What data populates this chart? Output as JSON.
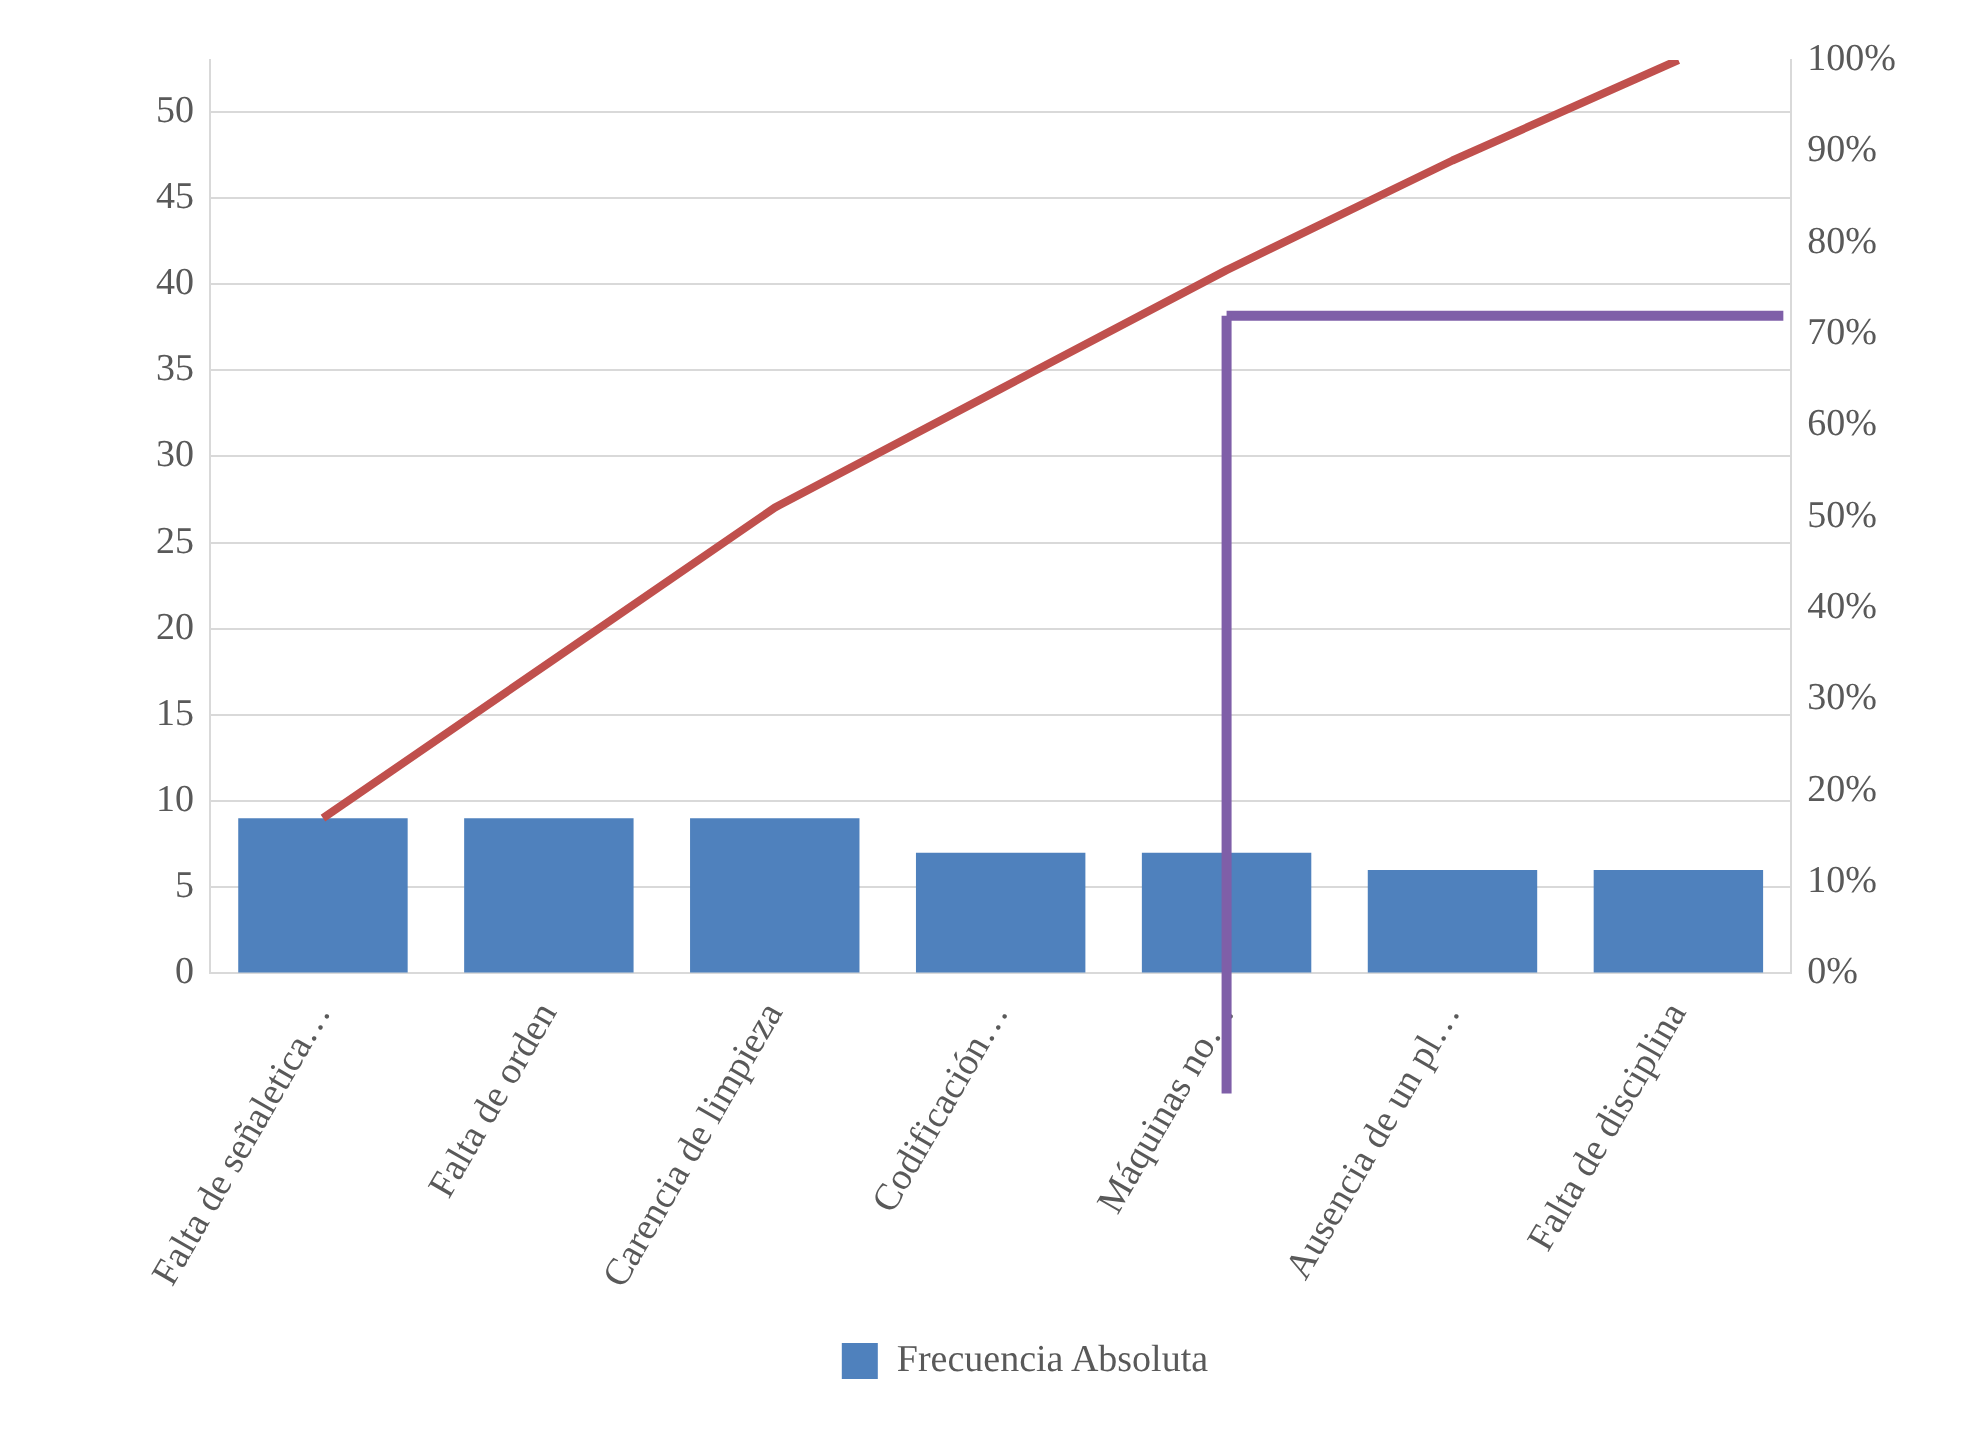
{
  "chart_data": {
    "type": "bar",
    "categories": [
      "Falta de señaletica…",
      "Falta de orden",
      "Carencia de limpieza",
      "Codificación…",
      "Máquinas no…",
      "Ausencia de un pl…",
      "Falta de disciplina"
    ],
    "series": [
      {
        "name": "Frecuencia Absoluta",
        "color": "#4f81bd",
        "values": [
          9,
          9,
          9,
          7,
          7,
          6,
          6
        ]
      },
      {
        "type": "line",
        "axis": "y2",
        "color": "#c0504d",
        "values": [
          17,
          34,
          51,
          64,
          77,
          89,
          100
        ]
      }
    ],
    "ylim": [
      0,
      53
    ],
    "yticks": [
      0,
      5,
      10,
      15,
      20,
      25,
      30,
      35,
      40,
      45,
      50
    ],
    "y2lim": [
      0,
      100
    ],
    "y2ticks": [
      {
        "value": 0,
        "label": "0%"
      },
      {
        "value": 10,
        "label": "10%"
      },
      {
        "value": 20,
        "label": "20%"
      },
      {
        "value": 30,
        "label": "30%"
      },
      {
        "value": 40,
        "label": "40%"
      },
      {
        "value": 50,
        "label": "50%"
      },
      {
        "value": 60,
        "label": "60%"
      },
      {
        "value": 70,
        "label": "70%"
      },
      {
        "value": 80,
        "label": "80%"
      },
      {
        "value": 90,
        "label": "90%"
      },
      {
        "value": 100,
        "label": "100%"
      }
    ],
    "ref_lines": [
      {
        "axis": "y2",
        "value": 72,
        "color": "#7f5fa8"
      },
      {
        "axis": "x",
        "value": "Máquinas no…",
        "color": "#7f5fa8"
      }
    ],
    "grid": "y",
    "legend": "bottom"
  }
}
